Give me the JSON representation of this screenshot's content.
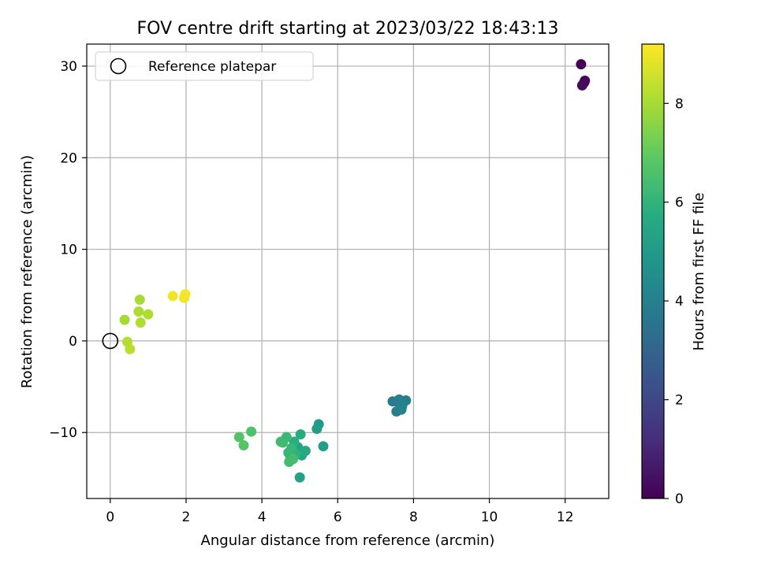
{
  "chart_data": {
    "type": "scatter",
    "title": "FOV centre drift starting at 2023/03/22 18:43:13",
    "xlabel": "Angular distance from reference (arcmin)",
    "ylabel": "Rotation from reference (arcmin)",
    "xlim": [
      -0.62,
      13.15
    ],
    "ylim": [
      -17.2,
      32.4
    ],
    "xticks": [
      0,
      2,
      4,
      6,
      8,
      10,
      12
    ],
    "yticks": [
      -10,
      0,
      10,
      20,
      30
    ],
    "xtick_labels": [
      "0",
      "2",
      "4",
      "6",
      "8",
      "10",
      "12"
    ],
    "ytick_labels": [
      "−10",
      "0",
      "10",
      "20",
      "30"
    ],
    "grid": true,
    "legend_placement": "top-left",
    "legend": [
      {
        "label": "Reference platepar",
        "marker": "open-circle"
      }
    ],
    "reference_point": {
      "x": 0,
      "y": 0
    },
    "colorbar": {
      "label": "Hours from first FF file",
      "range": [
        0,
        9.2
      ],
      "ticks": [
        0,
        2,
        4,
        6,
        8
      ],
      "tick_labels": [
        "0",
        "2",
        "4",
        "6",
        "8"
      ],
      "colormap": "viridis"
    },
    "points": [
      {
        "x": 12.42,
        "y": 30.2,
        "c": 0.05
      },
      {
        "x": 12.52,
        "y": 28.4,
        "c": 0.15
      },
      {
        "x": 12.5,
        "y": 28.2,
        "c": 0.2
      },
      {
        "x": 12.45,
        "y": 27.9,
        "c": 0.25
      },
      {
        "x": 7.45,
        "y": -6.6,
        "c": 3.8
      },
      {
        "x": 7.6,
        "y": -6.7,
        "c": 3.85
      },
      {
        "x": 7.62,
        "y": -6.4,
        "c": 3.9
      },
      {
        "x": 7.8,
        "y": -6.5,
        "c": 3.95
      },
      {
        "x": 7.55,
        "y": -7.7,
        "c": 4.0
      },
      {
        "x": 7.68,
        "y": -7.5,
        "c": 4.05
      },
      {
        "x": 7.7,
        "y": -7.1,
        "c": 4.1
      },
      {
        "x": 5.5,
        "y": -9.1,
        "c": 5.0
      },
      {
        "x": 5.45,
        "y": -9.6,
        "c": 5.1
      },
      {
        "x": 5.62,
        "y": -11.5,
        "c": 5.2
      },
      {
        "x": 5.0,
        "y": -14.9,
        "c": 5.3
      },
      {
        "x": 4.95,
        "y": -11.6,
        "c": 5.4
      },
      {
        "x": 5.05,
        "y": -12.5,
        "c": 5.5
      },
      {
        "x": 5.15,
        "y": -12.0,
        "c": 5.6
      },
      {
        "x": 5.02,
        "y": -10.2,
        "c": 5.7
      },
      {
        "x": 4.85,
        "y": -11.0,
        "c": 5.8
      },
      {
        "x": 4.9,
        "y": -12.4,
        "c": 5.9
      },
      {
        "x": 4.75,
        "y": -12.6,
        "c": 6.0
      },
      {
        "x": 4.7,
        "y": -12.2,
        "c": 6.1
      },
      {
        "x": 4.78,
        "y": -11.7,
        "c": 6.15
      },
      {
        "x": 4.65,
        "y": -10.5,
        "c": 6.2
      },
      {
        "x": 4.55,
        "y": -11.1,
        "c": 6.25
      },
      {
        "x": 4.5,
        "y": -11.0,
        "c": 6.3
      },
      {
        "x": 4.72,
        "y": -13.2,
        "c": 6.35
      },
      {
        "x": 4.82,
        "y": -12.9,
        "c": 6.4
      },
      {
        "x": 3.72,
        "y": -9.9,
        "c": 6.6
      },
      {
        "x": 3.4,
        "y": -10.5,
        "c": 6.7
      },
      {
        "x": 3.52,
        "y": -11.4,
        "c": 6.75
      },
      {
        "x": 0.78,
        "y": 4.5,
        "c": 8.0
      },
      {
        "x": 0.75,
        "y": 3.2,
        "c": 8.05
      },
      {
        "x": 1.0,
        "y": 2.9,
        "c": 8.1
      },
      {
        "x": 0.8,
        "y": 2.0,
        "c": 8.15
      },
      {
        "x": 0.38,
        "y": 2.3,
        "c": 8.0
      },
      {
        "x": 0.45,
        "y": -0.1,
        "c": 8.2
      },
      {
        "x": 0.52,
        "y": -0.9,
        "c": 8.25
      },
      {
        "x": 1.65,
        "y": 4.9,
        "c": 9.0
      },
      {
        "x": 1.95,
        "y": 4.7,
        "c": 9.05
      },
      {
        "x": 1.98,
        "y": 5.1,
        "c": 9.1
      }
    ]
  }
}
